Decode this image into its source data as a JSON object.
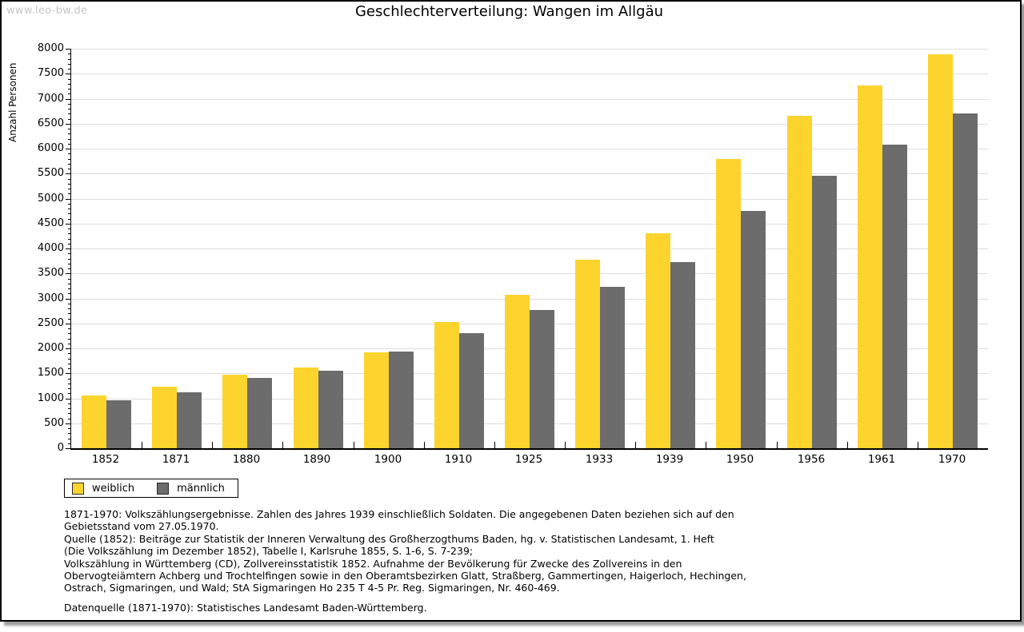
{
  "page": {
    "watermark": "www.leo-bw.de",
    "title": "Geschlechterverteilung: Wangen im Allgäu"
  },
  "chart_data": {
    "type": "bar",
    "title": "Geschlechterverteilung: Wangen im Allgäu",
    "ylabel": "Anzahl Personen",
    "xlabel": "",
    "ylim": [
      0,
      8000
    ],
    "ytick_step": 500,
    "ytick_minor_step": 100,
    "grid": true,
    "legend_position": "bottom-left",
    "categories": [
      "1852",
      "1871",
      "1880",
      "1890",
      "1900",
      "1910",
      "1925",
      "1933",
      "1939",
      "1950",
      "1956",
      "1961",
      "1970"
    ],
    "series": [
      {
        "name": "weiblich",
        "color": "#fcd42d",
        "values": [
          1050,
          1240,
          1470,
          1610,
          1920,
          2530,
          3070,
          3780,
          4300,
          5790,
          6650,
          7260,
          7890
        ]
      },
      {
        "name": "männlich",
        "color": "#6c6c6c",
        "values": [
          960,
          1120,
          1410,
          1560,
          1940,
          2300,
          2770,
          3240,
          3730,
          4750,
          5460,
          6080,
          6700
        ]
      }
    ]
  },
  "footer": {
    "lines": [
      "1871-1970: Volkszählungsergebnisse. Zahlen des Jahres 1939 einschließlich Soldaten. Die angegebenen Daten beziehen sich auf den",
      "Gebietsstand vom 27.05.1970.",
      "Quelle (1852): Beiträge zur Statistik der Inneren Verwaltung des Großherzogthums Baden, hg. v. Statistischen Landesamt, 1. Heft",
      "(Die Volkszählung im Dezember 1852), Tabelle I, Karlsruhe 1855, S. 1-6, S. 7-239;",
      "Volkszählung in Württemberg (CD), Zollvereinsstatistik 1852. Aufnahme der Bevölkerung für Zwecke des Zollvereins in den",
      "Obervogteiämtern Achberg und Trochtelfingen sowie in den Oberamtsbezirken Glatt, Straßberg, Gammertingen, Haigerloch, Hechingen,",
      "Ostrach, Sigmaringen, und Wald; StA Sigmaringen Ho 235 T 4-5 Pr. Reg. Sigmaringen, Nr. 460-469."
    ],
    "datasource": "Datenquelle (1871-1970): Statistisches Landesamt Baden-Württemberg."
  },
  "colors": {
    "female_bar": "#fcd42d",
    "male_bar": "#6c6c6c",
    "gridline": "#dddddd",
    "axis": "#000000",
    "watermark": "#c6c6c6",
    "frame_shadow": "#9a9a9a"
  }
}
